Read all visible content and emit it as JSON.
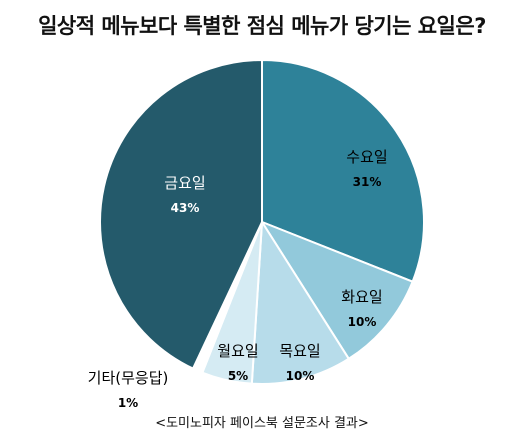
{
  "chart_data": {
    "type": "pie",
    "title": "일상적 메뉴보다 특별한 점심 메뉴가 당기는 요일은?",
    "note": "<도미노피자 페이스북 설문조사 결과>",
    "slices": [
      {
        "label": "수요일",
        "value": 31,
        "value_label": "31%",
        "color": "#2e8299"
      },
      {
        "label": "화요일",
        "value": 10,
        "value_label": "10%",
        "color": "#92c9db"
      },
      {
        "label": "목요일",
        "value": 10,
        "value_label": "10%",
        "color": "#b7dcea"
      },
      {
        "label": "월요일",
        "value": 5,
        "value_label": "5%",
        "color": "#d5ebf3"
      },
      {
        "label": "기타(무응답)",
        "value": 1,
        "value_label": "1%",
        "color": "#ffffff"
      },
      {
        "label": "금요일",
        "value": 43,
        "value_label": "43%",
        "color": "#245a6b"
      }
    ]
  }
}
